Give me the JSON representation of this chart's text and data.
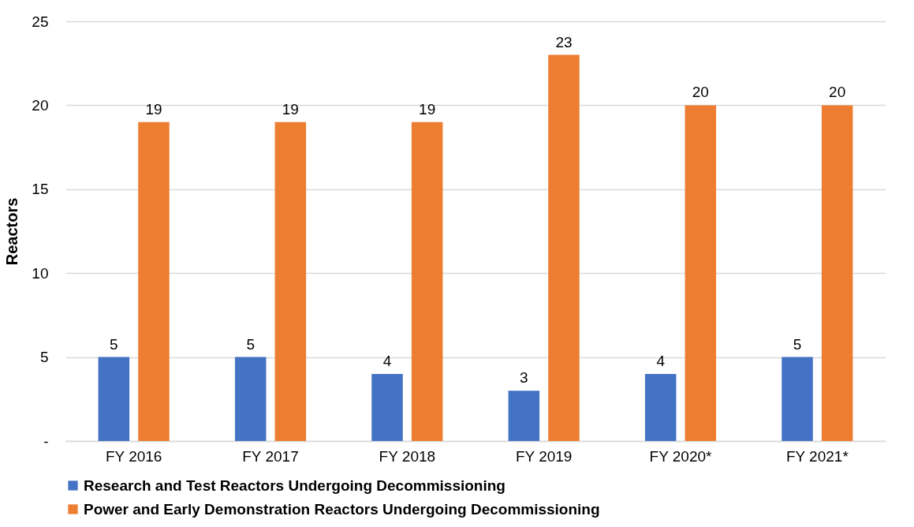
{
  "chart_data": {
    "type": "bar",
    "ylabel": "Reactors",
    "categories": [
      "FY 2016",
      "FY 2017",
      "FY 2018",
      "FY 2019",
      "FY 2020*",
      "FY 2021*"
    ],
    "series": [
      {
        "name": "Research and Test Reactors Undergoing Decommissioning",
        "color": "#4472c4",
        "values": [
          5,
          5,
          4,
          3,
          4,
          5
        ]
      },
      {
        "name": "Power and Early Demonstration Reactors Undergoing Decommissioning",
        "color": "#ed7d31",
        "values": [
          19,
          19,
          19,
          23,
          20,
          20
        ]
      }
    ],
    "ylim": [
      0,
      25
    ],
    "yticks": [
      {
        "value": 0,
        "label": "-"
      },
      5,
      10,
      15,
      20,
      25
    ],
    "grid": "y",
    "legend": "bottom",
    "data_labels": true
  }
}
